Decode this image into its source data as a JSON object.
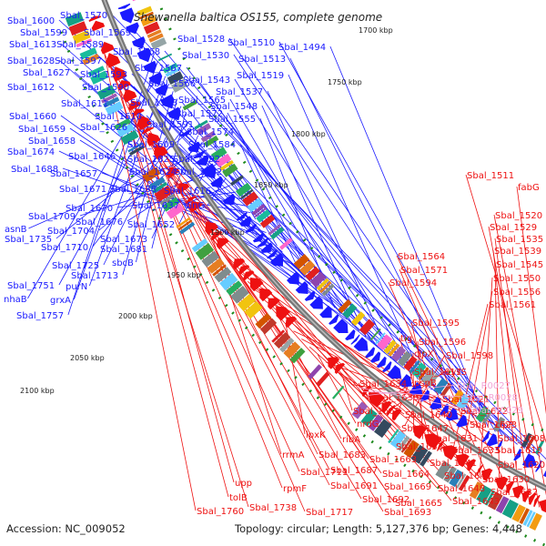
{
  "title": "Shewanella baltica OS155, complete genome",
  "footer": {
    "accession": "Accession: NC_009052",
    "summary": "Topology: circular; Length: 5,127,376 bp; Genes: 4,448"
  },
  "colors": {
    "minus_strand": "#1a1aff",
    "plus_strand": "#ee1111",
    "rna": "#f2a6d8",
    "backbone": "#777777",
    "tick_dash": "#1e8a1e"
  },
  "ticks": [
    "1700 kbp",
    "1750 kbp",
    "1800 kbp",
    "1850 kbp",
    "1900 kbp",
    "1950 kbp",
    "2000 kbp",
    "2050 kbp",
    "2100 kbp"
  ],
  "left_labels": [
    "Sbal_1570",
    "Sbal_1600",
    "Sbal_1599",
    "Sbal_1569",
    "Sbal_1613",
    "Sbal_1589",
    "Sbal_1528",
    "Sbal_1510",
    "Sbal_1494",
    "Sbal_1568",
    "Sbal_1530",
    "Sbal_1513",
    "Sbal_1628",
    "Sbal_1597",
    "Sbal_1567",
    "Sbal_1627",
    "Sbal_1593",
    "Sbal_1519",
    "Sbal_1543",
    "Sbal_1566",
    "Sbal_1612",
    "Sbal_1590",
    "Sbal_1537",
    "Sbal_1611",
    "Sbal_1588",
    "Sbal_1565",
    "Sbal_1548",
    "Sbal_1610",
    "Sbal_1572",
    "Sbal_1660",
    "Sbal_1591",
    "Sbal_1555",
    "Sbal_1659",
    "Sbal_1626",
    "Sbal_1574",
    "Sbal_1658",
    "Sbal_1609",
    "Sbal_1584",
    "Sbal_1674",
    "Sbal_1646",
    "Sbal_1625",
    "Sbal_1592",
    "Sbal_1688",
    "Sbal_1657",
    "Sbal_1624",
    "Sbal_1602",
    "Sbal_1671",
    "Sbal_1638",
    "Sbal_1616",
    "Sbal_1670",
    "Sbal_1637",
    "dinG",
    "Sbal_1709",
    "Sbal_1676",
    "Sbal_1652",
    "asnB",
    "Sbal_1704",
    "Sbal_1673",
    "Sbal_1735",
    "Sbal_1710",
    "Sbal_1681",
    "Sbal_1725",
    "sbcB",
    "Sbal_1713",
    "Sbal_1751",
    "purN",
    "nhaB",
    "grxA",
    "Sbal_1757"
  ],
  "right_labels": [
    "Sbal_1511",
    "fabG",
    "Sbal_1520",
    "Sbal_1529",
    "Sbal_1535",
    "Sbal_1539",
    "Sbal_1564",
    "Sbal_1545",
    "Sbal_1571",
    "Sbal_1550",
    "Sbal_1594",
    "Sbal_1556",
    "Sbal_1561",
    "Sbal_1595",
    "tig",
    "Sbal_1596",
    "clpX",
    "Sbal_1598",
    "Sbal_1617",
    "cysS",
    "pspB",
    "Sbal_1634",
    "Sbal_1636",
    "Sbal_1621",
    "Sbal_1661",
    "Sbal_1640",
    "Sbal_1622",
    "nrdG",
    "Sbal_1647",
    "Sbal_1623",
    "clpP",
    "lpxK",
    "ribA",
    "Sbal_1653",
    "Sbal_1631",
    "Sbal_1608",
    "Sbal_1633",
    "Sbal_1619",
    "Sbal_1663",
    "Sbal_1641",
    "Sbal_1620",
    "rrmA",
    "Sbal_1683",
    "Sbal_1664",
    "Sbal_1642",
    "Sbal_1630",
    "Sbal_1687",
    "Sbal_1669",
    "Sbal_1648",
    "Sbal_1632",
    "Sbal_1711",
    "Sbal_1691",
    "Sbal_1665",
    "Sbal_1643",
    "upp",
    "rpmF",
    "Sbal_1692",
    "tolB",
    "Sbal_1738",
    "Sbal_1693",
    "Sbal_1760",
    "Sbal_1717"
  ],
  "rna_labels": [
    "Sbal_R0027",
    "Sbal_R0028",
    "Sbal_R0029"
  ]
}
